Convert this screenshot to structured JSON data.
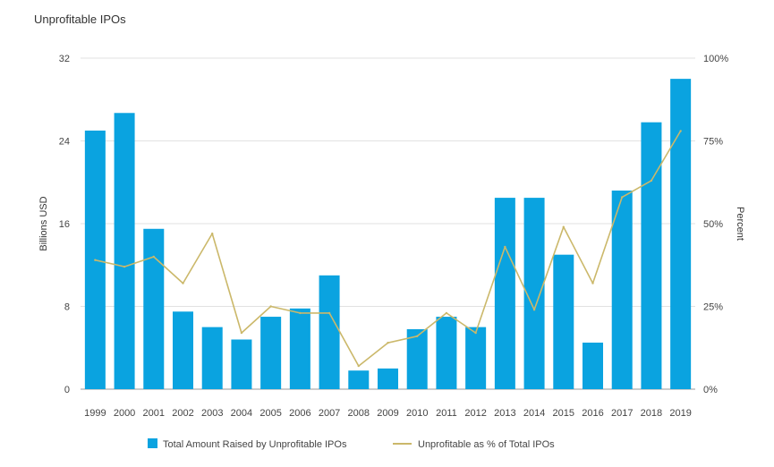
{
  "chart_data": {
    "type": "bar",
    "title": "Unprofitable IPOs",
    "categories": [
      "1999",
      "2000",
      "2001",
      "2002",
      "2003",
      "2004",
      "2005",
      "2006",
      "2007",
      "2008",
      "2009",
      "2010",
      "2011",
      "2012",
      "2013",
      "2014",
      "2015",
      "2016",
      "2017",
      "2018",
      "2019"
    ],
    "series": [
      {
        "name": "Total Amount Raised by Unprofitable IPOs",
        "type": "bar",
        "axis": "left",
        "color": "#0aa3e0",
        "values": [
          25.0,
          26.7,
          15.5,
          7.5,
          6.0,
          4.8,
          7.0,
          7.8,
          11.0,
          1.8,
          2.0,
          5.8,
          7.0,
          6.0,
          18.5,
          18.5,
          13.0,
          4.5,
          19.2,
          25.8,
          30.0
        ]
      },
      {
        "name": "Unprofitable as % of Total IPOs",
        "type": "line",
        "axis": "right",
        "color": "#cbb86a",
        "values": [
          39,
          37,
          40,
          32,
          47,
          17,
          25,
          23,
          23,
          7,
          14,
          16,
          23,
          17,
          43,
          24,
          49,
          32,
          58,
          63,
          78
        ]
      }
    ],
    "ylabel": "Billions USD",
    "y2label": "Percent",
    "ylim": [
      0,
      32
    ],
    "y2lim": [
      0,
      100
    ],
    "yticks": [
      "0",
      "8",
      "16",
      "24",
      "32"
    ],
    "y2ticks": [
      "0%",
      "25%",
      "50%",
      "75%",
      "100%"
    ],
    "grid": true,
    "legend_position": "bottom"
  }
}
